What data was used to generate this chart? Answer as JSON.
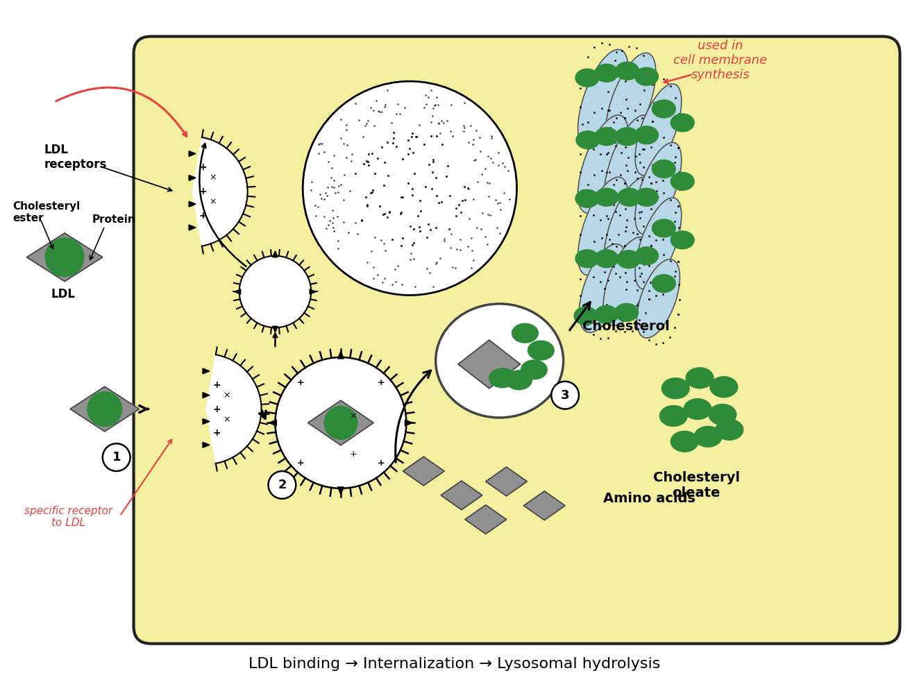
{
  "cell_bg": "#F5F0A0",
  "cell_border": "#222222",
  "green_color": "#2D8B3A",
  "gray_color": "#909090",
  "gray_dark": "#606060",
  "light_blue": "#B8D8E8",
  "black": "#111111",
  "white": "#FFFFFF",
  "red_annotation": "#E84040",
  "title_bottom": "LDL binding → Internalization → Lysosomal hydrolysis",
  "label_ldl_receptors": "LDL\nreceptors",
  "label_cholesteryl_ester": "Cholesteryl\nester",
  "label_protein": "Protein",
  "label_ldl": "LDL",
  "label_cholesterol": "Cholesterol",
  "label_cholesteryl_oleate": "Cholesteryl\noleate",
  "label_amino_acids": "Amino acids",
  "annotation_used_in": "used in\ncell membrane\nsynthesis",
  "annotation_specific": "specific receptor\nto LDL"
}
